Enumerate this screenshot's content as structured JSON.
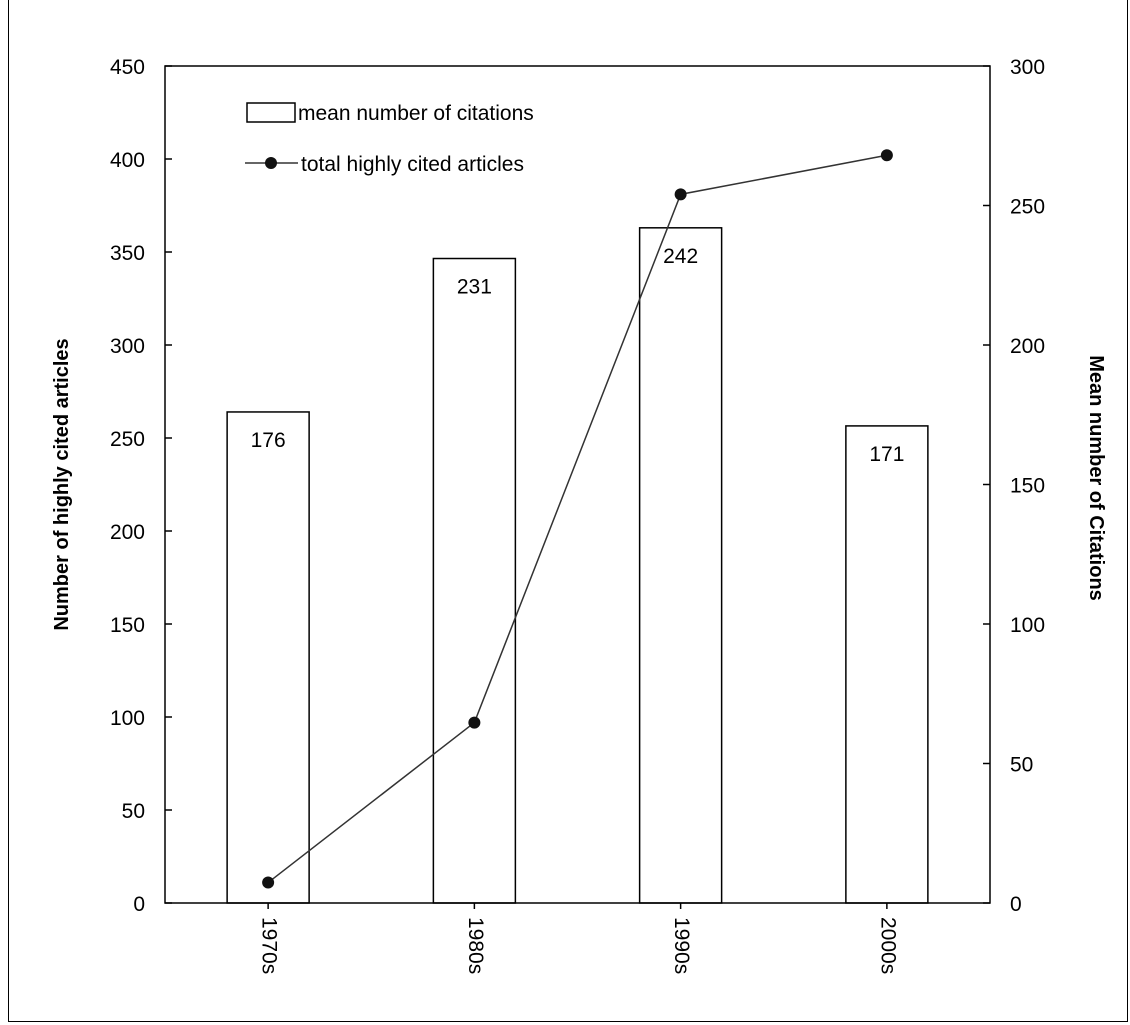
{
  "chart_data": {
    "type": "bar",
    "categories": [
      "1970s",
      "1980s",
      "1990s",
      "2000s"
    ],
    "series": [
      {
        "name": "mean number of citations",
        "type": "bar",
        "axis": "right",
        "values": [
          176,
          231,
          242,
          171
        ],
        "data_labels": [
          "176",
          "231",
          "242",
          "171"
        ]
      },
      {
        "name": "total highly cited articles",
        "type": "line",
        "axis": "left",
        "values": [
          11,
          97,
          381,
          402
        ]
      }
    ],
    "title": "",
    "xlabel": "",
    "ylabel": "Number of highly cited articles",
    "y2label": "Mean number of Citations",
    "ylim": [
      0,
      450
    ],
    "y2lim": [
      0,
      300
    ],
    "yticks": [
      "0",
      "50",
      "100",
      "150",
      "200",
      "250",
      "300",
      "350",
      "400",
      "450"
    ],
    "y2ticks": [
      "0",
      "50",
      "100",
      "150",
      "200",
      "250",
      "300"
    ],
    "grid": false,
    "legend_position": "top-left"
  },
  "colors": {
    "bar_fill": "#ffffff",
    "bar_stroke": "#000000",
    "line": "#333333",
    "marker": "#111111",
    "axis": "#000000"
  }
}
